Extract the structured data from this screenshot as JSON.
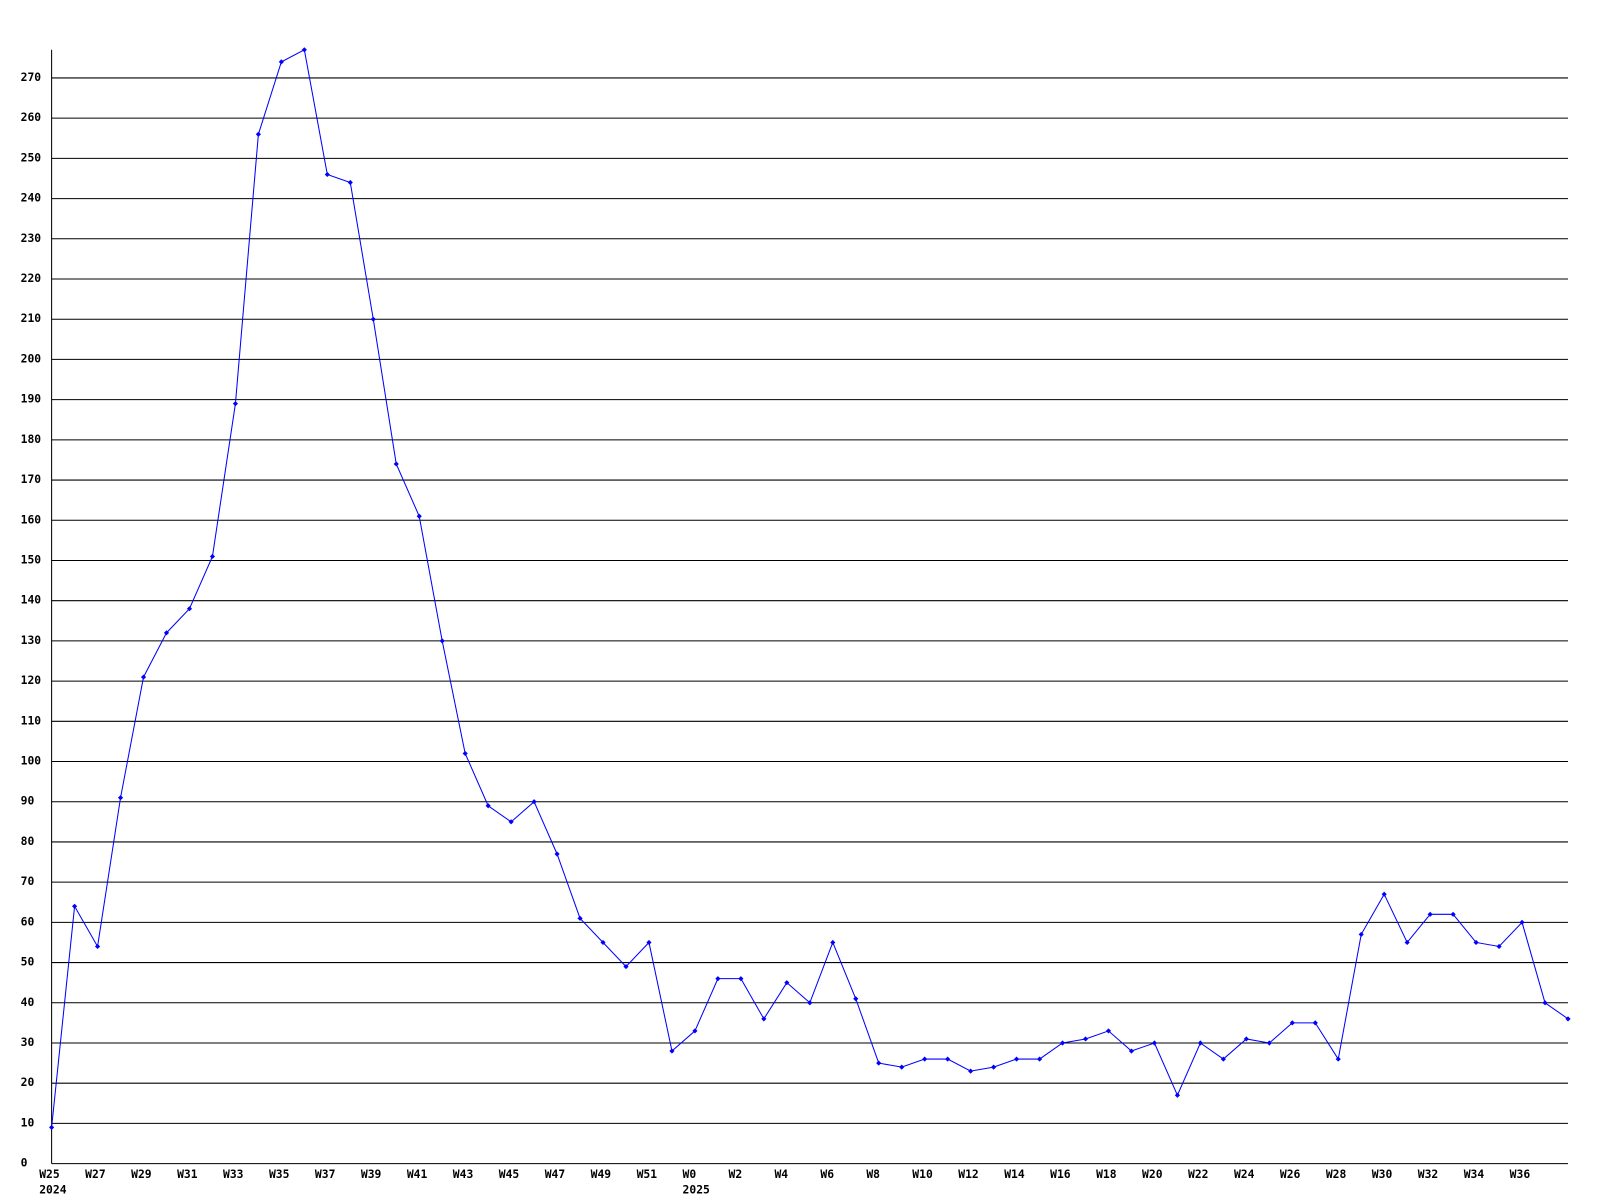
{
  "chart_data": {
    "type": "line",
    "categories": [
      "W25",
      null,
      "W27",
      null,
      "W29",
      null,
      "W31",
      null,
      "W33",
      null,
      "W35",
      null,
      "W37",
      null,
      "W39",
      null,
      "W41",
      null,
      "W43",
      null,
      "W45",
      null,
      "W47",
      null,
      "W49",
      null,
      "W51",
      null,
      "W0",
      null,
      "W2",
      null,
      "W4",
      null,
      "W6",
      null,
      "W8",
      null,
      "W10",
      null,
      "W12",
      null,
      "W14",
      null,
      "W16",
      null,
      "W18",
      null,
      "W20",
      null,
      "W22",
      null,
      "W24",
      null,
      "W26",
      null,
      "W28",
      null,
      "W30",
      null,
      "W32",
      null,
      "W34",
      null,
      "W36",
      null,
      null
    ],
    "category_sublabels": [
      "2024",
      null,
      null,
      null,
      null,
      null,
      null,
      null,
      null,
      null,
      null,
      null,
      null,
      null,
      null,
      null,
      null,
      null,
      null,
      null,
      null,
      null,
      null,
      null,
      null,
      null,
      null,
      null,
      "2025",
      null,
      null,
      null,
      null,
      null,
      null,
      null,
      null,
      null,
      null,
      null,
      null,
      null,
      null,
      null,
      null,
      null,
      null,
      null,
      null,
      null,
      null,
      null,
      null,
      null,
      null,
      null,
      null,
      null,
      null,
      null,
      null,
      null,
      null,
      null,
      null,
      null,
      null
    ],
    "series": [
      {
        "color": "#0000ff",
        "values": [
          9,
          64,
          54,
          91,
          121,
          132,
          138,
          151,
          189,
          256,
          274,
          277,
          246,
          244,
          210,
          174,
          161,
          130,
          102,
          89,
          85,
          90,
          77,
          61,
          55,
          49,
          55,
          28,
          33,
          46,
          46,
          36,
          45,
          40,
          55,
          41,
          25,
          24,
          26,
          26,
          23,
          24,
          26,
          26,
          30,
          31,
          33,
          28,
          30,
          17,
          30,
          26,
          31,
          30,
          35,
          35,
          26,
          57,
          67,
          55,
          62,
          62,
          55,
          54,
          60,
          40,
          36
        ]
      }
    ],
    "ylim": [
      0,
      277
    ],
    "yticks": [
      0,
      10,
      20,
      30,
      40,
      50,
      60,
      70,
      80,
      90,
      100,
      110,
      120,
      130,
      140,
      150,
      160,
      170,
      180,
      190,
      200,
      210,
      220,
      230,
      240,
      250,
      260,
      270
    ],
    "grid": true
  }
}
